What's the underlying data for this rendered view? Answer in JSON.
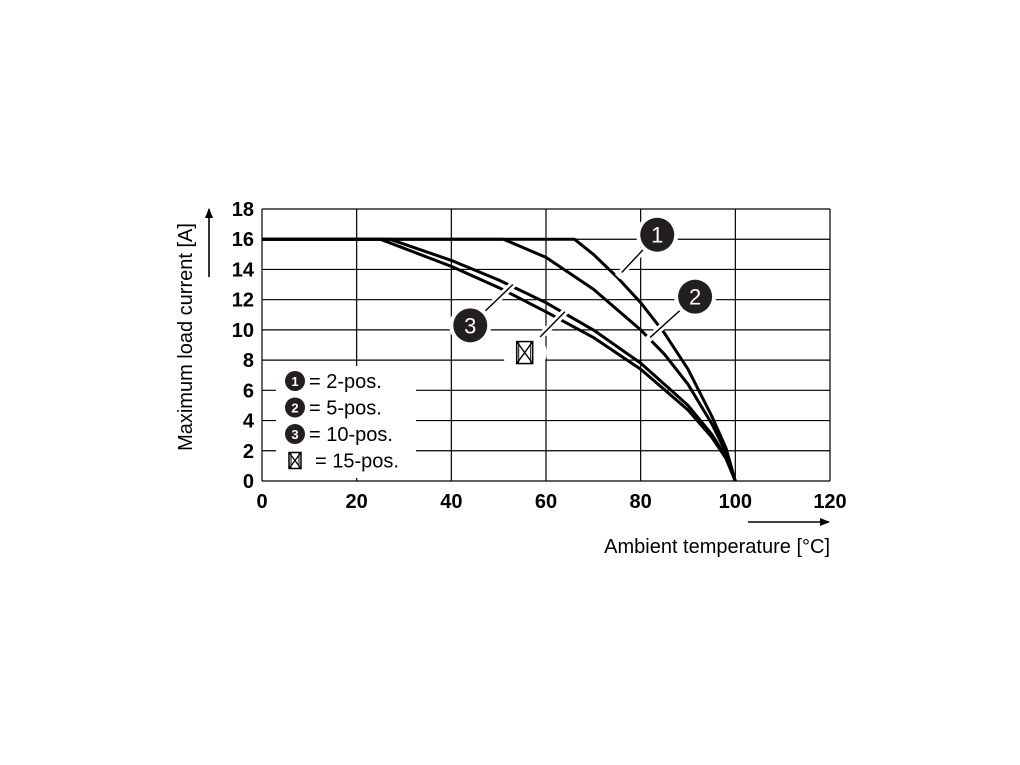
{
  "chart_data": {
    "type": "line",
    "xlabel": "Ambient temperature [°C]",
    "ylabel": "Maximum load current [A]",
    "xlim": [
      0,
      120
    ],
    "ylim": [
      0,
      18
    ],
    "x_ticks": [
      "0",
      "20",
      "40",
      "60",
      "80",
      "100",
      "120"
    ],
    "y_ticks": [
      "0",
      "2",
      "4",
      "6",
      "8",
      "10",
      "12",
      "14",
      "16",
      "18"
    ],
    "grid": true,
    "legend_position": "bottom-left",
    "series": [
      {
        "marker": "1",
        "name": "= 2-pos.",
        "x": [
          0,
          66,
          70,
          75,
          80,
          85,
          90,
          95,
          98,
          100
        ],
        "y": [
          16,
          16,
          15.0,
          13.5,
          11.8,
          9.8,
          7.4,
          4.3,
          2.2,
          0
        ]
      },
      {
        "marker": "2",
        "name": "= 5-pos.",
        "x": [
          0,
          51,
          60,
          70,
          80,
          85,
          90,
          95,
          98,
          100
        ],
        "y": [
          16,
          16,
          14.8,
          12.7,
          10.0,
          8.4,
          6.4,
          3.8,
          1.9,
          0
        ]
      },
      {
        "marker": "3",
        "name": "= 10-pos.",
        "x": [
          0,
          27,
          40,
          50,
          60,
          70,
          80,
          90,
          95,
          98,
          100
        ],
        "y": [
          16,
          16,
          14.6,
          13.3,
          11.8,
          10.0,
          7.8,
          5.0,
          3.1,
          1.6,
          0
        ]
      },
      {
        "marker": "box",
        "name": "= 15-pos.",
        "x": [
          0,
          25,
          40,
          50,
          60,
          70,
          80,
          90,
          95,
          98,
          100
        ],
        "y": [
          16,
          16,
          14.2,
          12.8,
          11.2,
          9.5,
          7.4,
          4.7,
          2.9,
          1.5,
          0
        ]
      }
    ],
    "callouts": [
      {
        "marker": "1",
        "point": [
          76,
          13.8
        ],
        "label_at": [
          83.5,
          16.3
        ]
      },
      {
        "marker": "2",
        "point": [
          82,
          9.5
        ],
        "label_at": [
          91.5,
          12.2
        ]
      },
      {
        "marker": "3",
        "point": [
          53,
          13.0
        ],
        "label_at": [
          44,
          10.3
        ]
      },
      {
        "marker": "box",
        "point": [
          64,
          11.2
        ],
        "label_at": [
          55.5,
          8.5
        ]
      }
    ]
  }
}
